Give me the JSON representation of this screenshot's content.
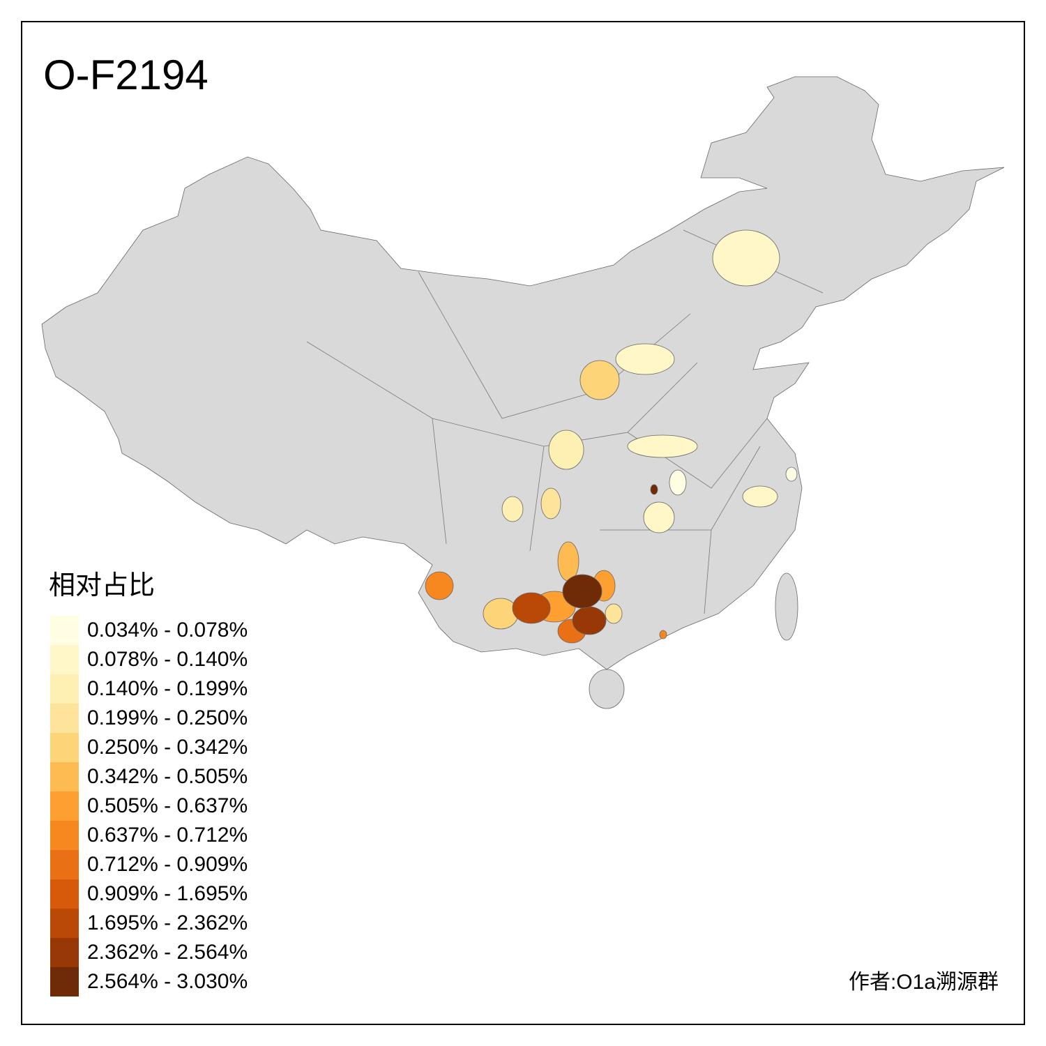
{
  "title": "O-F2194",
  "legend": {
    "title": "相对占比",
    "items": [
      {
        "label": "0.034% - 0.078%",
        "color": "#FFFEE3"
      },
      {
        "label": "0.078% - 0.140%",
        "color": "#FFF7C8"
      },
      {
        "label": "0.140% - 0.199%",
        "color": "#FEEFB2"
      },
      {
        "label": "0.199% - 0.250%",
        "color": "#FEE39A"
      },
      {
        "label": "0.250% - 0.342%",
        "color": "#FED479"
      },
      {
        "label": "0.342% - 0.505%",
        "color": "#FEBB52"
      },
      {
        "label": "0.505% - 0.637%",
        "color": "#FE9F32"
      },
      {
        "label": "0.637% - 0.712%",
        "color": "#F7871F"
      },
      {
        "label": "0.712% - 0.909%",
        "color": "#E97014"
      },
      {
        "label": "0.909% - 1.695%",
        "color": "#D7590A"
      },
      {
        "label": "1.695% - 2.362%",
        "color": "#BA4806"
      },
      {
        "label": "2.362% - 2.564%",
        "color": "#983806"
      },
      {
        "label": "2.564% - 3.030%",
        "color": "#6F2A08"
      }
    ]
  },
  "author": "作者:O1a溯源群"
}
